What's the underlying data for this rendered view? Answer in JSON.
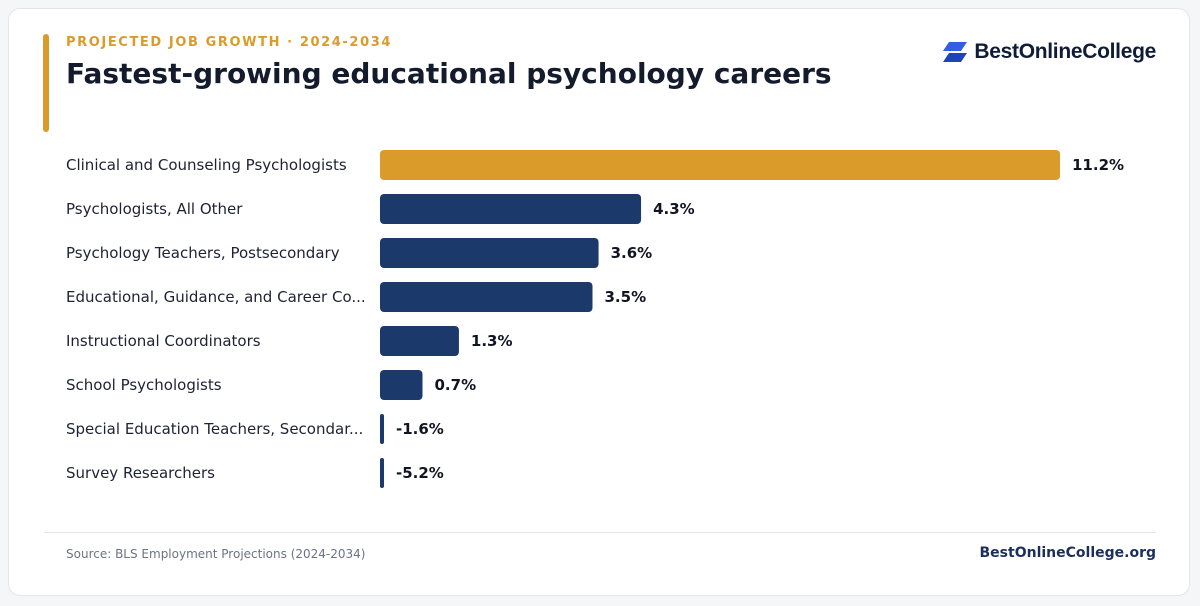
{
  "header": {
    "eyebrow": "PROJECTED JOB GROWTH · 2024-2034",
    "title": "Fastest-growing educational psychology careers"
  },
  "brand": {
    "logo_text": "BestOnlineCollege",
    "logo_icon": "stacked-parallelogram-logo-icon",
    "logo_color": "#2f5fe3"
  },
  "colors": {
    "highlight": "#db9b2a",
    "bar": "#1b3a6b",
    "accent": "#db9b2a"
  },
  "chart_data": {
    "type": "bar",
    "orientation": "horizontal",
    "categories": [
      "Clinical and Counseling Psychologists",
      "Psychologists, All Other",
      "Psychology Teachers, Postsecondary",
      "Educational, Guidance, and Career Co...",
      "Instructional Coordinators",
      "School Psychologists",
      "Special Education Teachers, Secondar...",
      "Survey Researchers"
    ],
    "values": [
      11.2,
      4.3,
      3.6,
      3.5,
      1.3,
      0.7,
      -1.6,
      -5.2
    ],
    "value_labels": [
      "11.2%",
      "4.3%",
      "3.6%",
      "3.5%",
      "1.3%",
      "0.7%",
      "-1.6%",
      "-5.2%"
    ],
    "highlight_index": 0,
    "xlim": [
      0,
      11.2
    ],
    "grid": false,
    "legend": "none"
  },
  "footer": {
    "source": "Source: BLS Employment Projections (2024-2034)",
    "brand": "BestOnlineCollege.org"
  }
}
